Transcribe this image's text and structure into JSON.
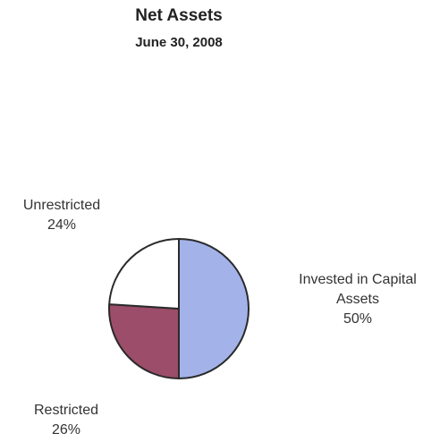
{
  "chart_data": {
    "type": "pie",
    "title": "Net Assets",
    "subtitle": "June 30, 2008",
    "slices": [
      {
        "label": "Invested in Capital Assets",
        "label_lines": [
          "Invested in Capital",
          "Assets"
        ],
        "pct_label": "50%",
        "value": 50,
        "color": "#a3b3ea"
      },
      {
        "label": "Restricted",
        "label_lines": [
          "Restricted"
        ],
        "pct_label": "26%",
        "value": 26,
        "color": "#9c4d69"
      },
      {
        "label": "Unrestricted",
        "label_lines": [
          "Unrestricted"
        ],
        "pct_label": "24%",
        "value": 24,
        "color": "#ffffff"
      }
    ],
    "start_angle_deg": 0,
    "direction": "clockwise",
    "legend": "none"
  }
}
